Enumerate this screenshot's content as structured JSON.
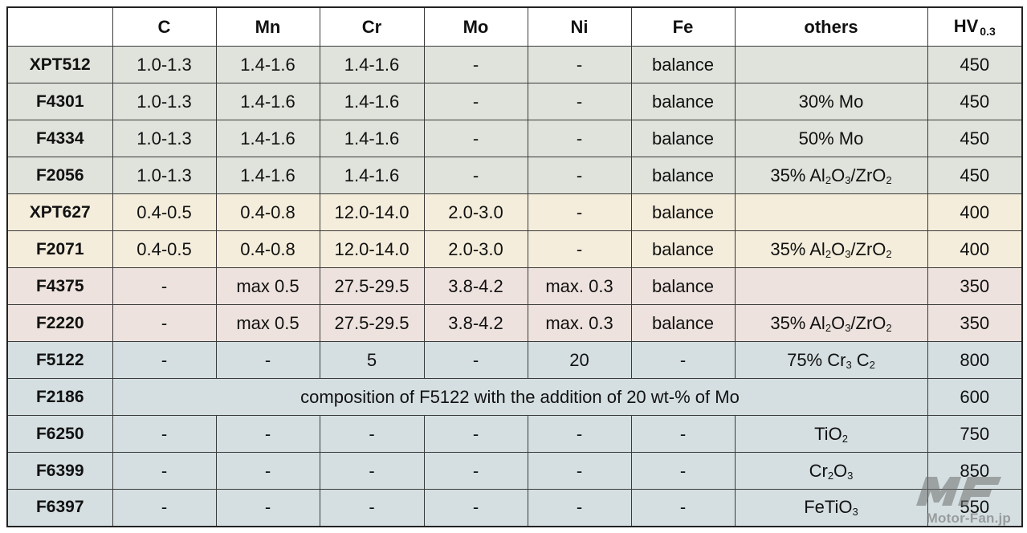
{
  "table": {
    "headers": [
      "",
      "C",
      "Mn",
      "Cr",
      "Mo",
      "Ni",
      "Fe",
      "others",
      "HV"
    ],
    "hv_subscript": "0.3",
    "rows": [
      {
        "name": "XPT512",
        "c": "1.0-1.3",
        "mn": "1.4-1.6",
        "cr": "1.4-1.6",
        "mo": "-",
        "ni": "-",
        "fe": "balance",
        "others": [],
        "hv": "450"
      },
      {
        "name": "F4301",
        "c": "1.0-1.3",
        "mn": "1.4-1.6",
        "cr": "1.4-1.6",
        "mo": "-",
        "ni": "-",
        "fe": "balance",
        "others": [
          {
            "t": "30% Mo"
          }
        ],
        "hv": "450"
      },
      {
        "name": "F4334",
        "c": "1.0-1.3",
        "mn": "1.4-1.6",
        "cr": "1.4-1.6",
        "mo": "-",
        "ni": "-",
        "fe": "balance",
        "others": [
          {
            "t": "50% Mo"
          }
        ],
        "hv": "450"
      },
      {
        "name": "F2056",
        "c": "1.0-1.3",
        "mn": "1.4-1.6",
        "cr": "1.4-1.6",
        "mo": "-",
        "ni": "-",
        "fe": "balance",
        "others": [
          {
            "t": "35% Al"
          },
          {
            "s": "2"
          },
          {
            "t": "O"
          },
          {
            "s": "3"
          },
          {
            "t": "/ZrO"
          },
          {
            "s": "2"
          }
        ],
        "hv": "450"
      },
      {
        "name": "XPT627",
        "c": "0.4-0.5",
        "mn": "0.4-0.8",
        "cr": "12.0-14.0",
        "mo": "2.0-3.0",
        "ni": "-",
        "fe": "balance",
        "others": [],
        "hv": "400"
      },
      {
        "name": "F2071",
        "c": "0.4-0.5",
        "mn": "0.4-0.8",
        "cr": "12.0-14.0",
        "mo": "2.0-3.0",
        "ni": "-",
        "fe": "balance",
        "others": [
          {
            "t": "35% Al"
          },
          {
            "s": "2"
          },
          {
            "t": "O"
          },
          {
            "s": "3"
          },
          {
            "t": "/ZrO"
          },
          {
            "s": "2"
          }
        ],
        "hv": "400"
      },
      {
        "name": "F4375",
        "c": "-",
        "mn": "max 0.5",
        "cr": "27.5-29.5",
        "mo": "3.8-4.2",
        "ni": "max. 0.3",
        "fe": "balance",
        "others": [],
        "hv": "350"
      },
      {
        "name": "F2220",
        "c": "-",
        "mn": "max 0.5",
        "cr": "27.5-29.5",
        "mo": "3.8-4.2",
        "ni": "max. 0.3",
        "fe": "balance",
        "others": [
          {
            "t": "35% Al"
          },
          {
            "s": "2"
          },
          {
            "t": "O"
          },
          {
            "s": "3"
          },
          {
            "t": "/ZrO"
          },
          {
            "s": "2"
          }
        ],
        "hv": "350"
      },
      {
        "name": "F5122",
        "c": "-",
        "mn": "-",
        "cr": "5",
        "mo": "-",
        "ni": "20",
        "fe": "-",
        "others": [
          {
            "t": "75% Cr"
          },
          {
            "s": "3"
          },
          {
            "t": " C"
          },
          {
            "s": "2"
          }
        ],
        "hv": "800"
      },
      {
        "name": "F2186",
        "merged": "composition of F5122 with the addition of 20 wt-% of Mo",
        "hv": "600"
      },
      {
        "name": "F6250",
        "c": "-",
        "mn": "-",
        "cr": "-",
        "mo": "-",
        "ni": "-",
        "fe": "-",
        "others": [
          {
            "t": "TiO"
          },
          {
            "s": "2"
          }
        ],
        "hv": "750"
      },
      {
        "name": "F6399",
        "c": "-",
        "mn": "-",
        "cr": "-",
        "mo": "-",
        "ni": "-",
        "fe": "-",
        "others": [
          {
            "t": "Cr"
          },
          {
            "s": "2"
          },
          {
            "t": "O"
          },
          {
            "s": "3"
          }
        ],
        "hv": "850"
      },
      {
        "name": "F6397",
        "c": "-",
        "mn": "-",
        "cr": "-",
        "mo": "-",
        "ni": "-",
        "fe": "-",
        "others": [
          {
            "t": "FeTiO"
          },
          {
            "s": "3"
          }
        ],
        "hv": "550"
      }
    ]
  },
  "row_groups": [
    "g1",
    "g1",
    "g1",
    "g1",
    "g2",
    "g2",
    "g3",
    "g3",
    "g4",
    "g4",
    "g4",
    "g4",
    "g4"
  ],
  "colors": {
    "g1": "#dfe3dc",
    "g2": "#f4eddb",
    "g3": "#ede2dd",
    "g4": "#d5dfe1"
  },
  "watermark": {
    "logo": "MF",
    "text": "Motor-Fan.jp"
  }
}
